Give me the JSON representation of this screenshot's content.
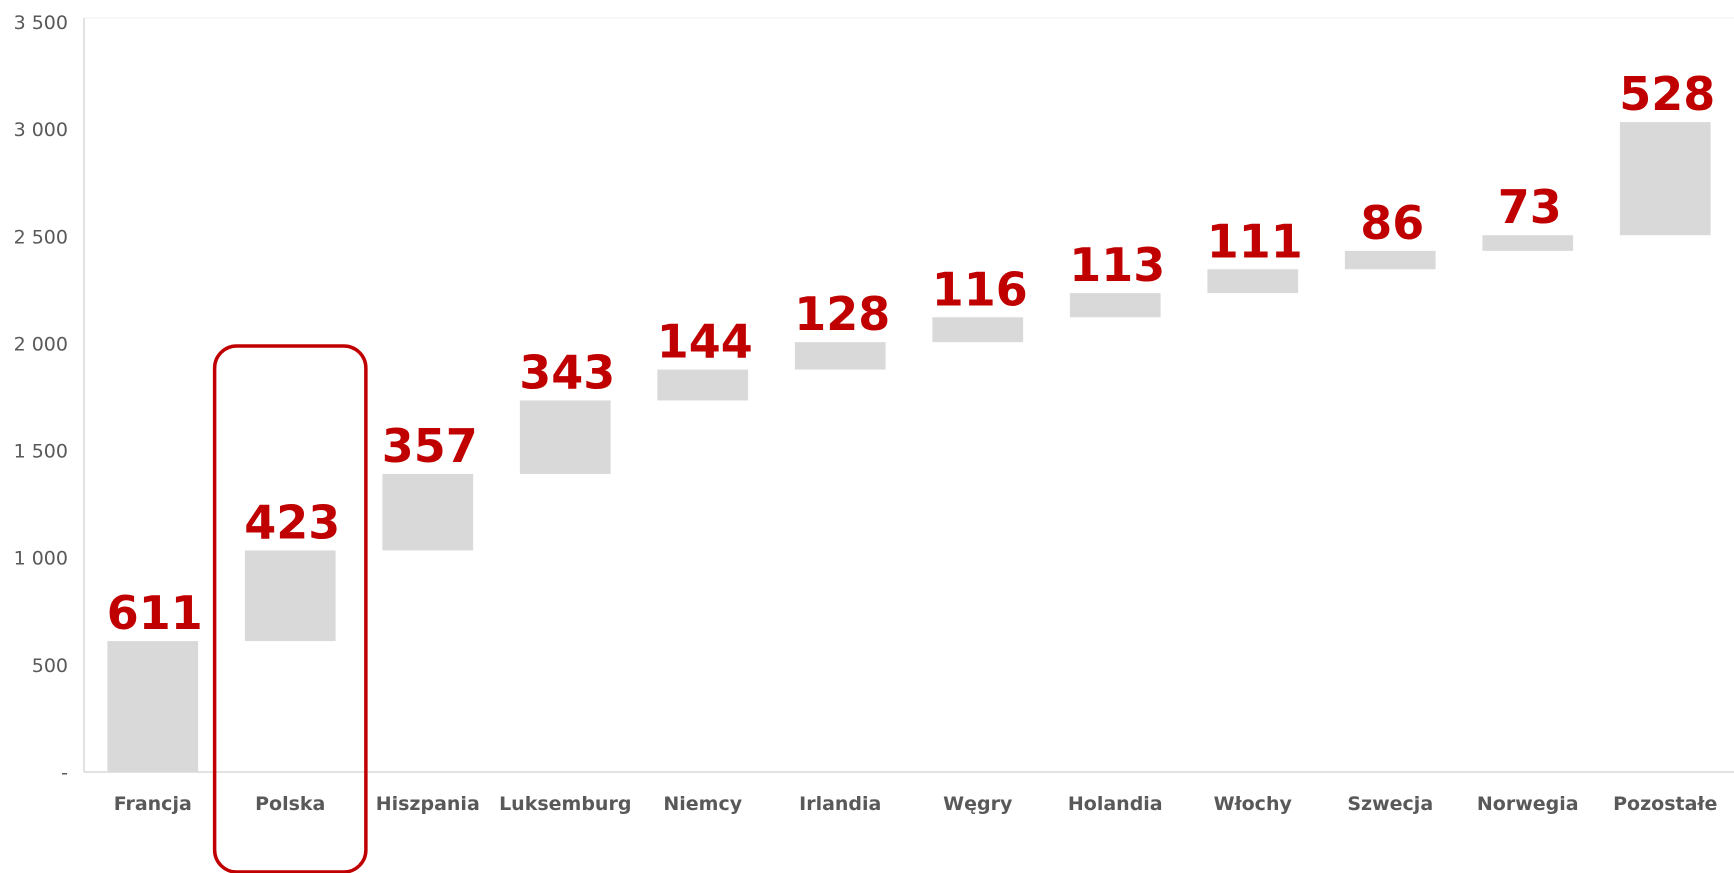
{
  "chart_data": {
    "type": "bar",
    "subtype": "waterfall",
    "categories": [
      "Francja",
      "Polska",
      "Hiszpania",
      "Luksemburg",
      "Niemcy",
      "Irlandia",
      "Węgry",
      "Holandia",
      "Włochy",
      "Szwecja",
      "Norwegia",
      "Pozostałe"
    ],
    "values": [
      611,
      423,
      357,
      343,
      144,
      128,
      116,
      113,
      111,
      86,
      73,
      528
    ],
    "value_labels": [
      "611",
      "423",
      "357",
      "343",
      "144",
      "128",
      "116",
      "113",
      "111",
      "86",
      "73",
      "528"
    ],
    "ylim": [
      0,
      3500
    ],
    "yticks": [
      0,
      500,
      1000,
      1500,
      2000,
      2500,
      3000,
      3500
    ],
    "ytick_labels": [
      "-",
      "500",
      "1 000",
      "1 500",
      "2 000",
      "2 500",
      "3 000",
      "3 500"
    ],
    "highlight_category": "Polska",
    "colors": {
      "bar": "#d9d9d9",
      "label": "#c00000",
      "highlight": "#c00000",
      "axis": "#d9d9d9",
      "tick_text": "#595959"
    },
    "grid": false,
    "legend": "none"
  }
}
